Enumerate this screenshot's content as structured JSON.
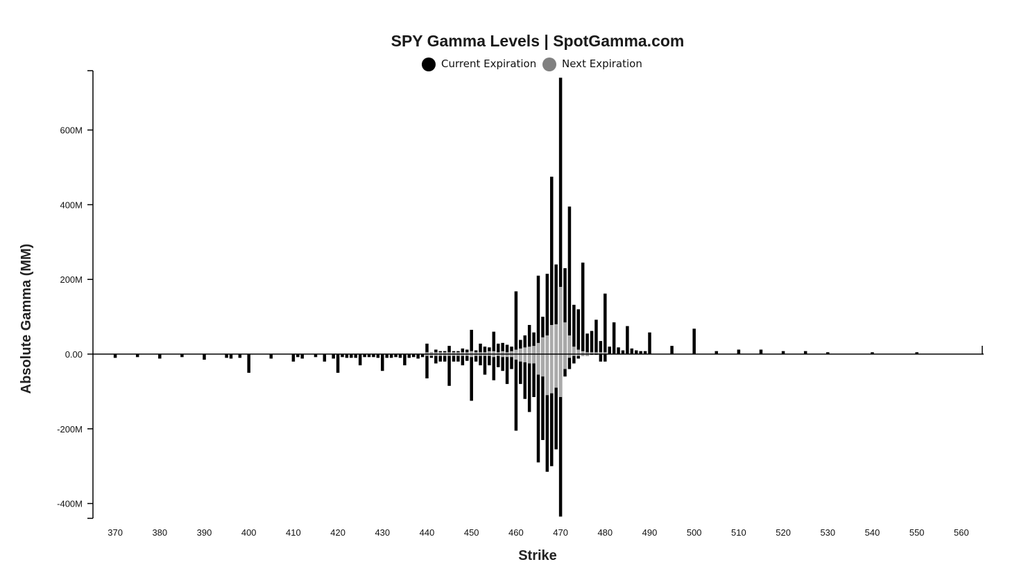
{
  "chart_data": {
    "type": "bar",
    "title": "SPY Gamma Levels | SpotGamma.com",
    "xlabel": "Strike",
    "ylabel": "Absolute Gamma (MM)",
    "xlim": [
      365,
      565
    ],
    "ylim": [
      -440,
      760
    ],
    "x_ticks": [
      370,
      380,
      390,
      400,
      410,
      420,
      430,
      440,
      450,
      460,
      470,
      480,
      490,
      500,
      510,
      520,
      530,
      540,
      550,
      560
    ],
    "x_tick_labels": [
      "370",
      "380",
      "390",
      "400",
      "410",
      "420",
      "430",
      "440",
      "450",
      "460",
      "470",
      "480",
      "490",
      "500",
      "510",
      "520",
      "530",
      "540",
      "550",
      "560"
    ],
    "y_ticks": [
      -400,
      -200,
      0,
      200,
      400,
      600
    ],
    "y_tick_labels": [
      "-400M",
      "-200M",
      "0.00",
      "200M",
      "400M",
      "600M"
    ],
    "grid": false,
    "legend_position": "top-center",
    "colors": {
      "current": "#000000",
      "next": "#aaaaaa",
      "next_legend": "#808080"
    },
    "series": [
      {
        "name": "Current Expiration",
        "x": [
          370,
          375,
          380,
          385,
          390,
          395,
          396,
          398,
          400,
          405,
          410,
          411,
          412,
          415,
          417,
          419,
          420,
          421,
          422,
          423,
          424,
          425,
          426,
          427,
          428,
          429,
          430,
          431,
          432,
          433,
          434,
          435,
          436,
          437,
          438,
          439,
          440,
          441,
          442,
          443,
          444,
          445,
          446,
          447,
          448,
          449,
          450,
          451,
          452,
          453,
          454,
          455,
          456,
          457,
          458,
          459,
          460,
          461,
          462,
          463,
          464,
          465,
          466,
          467,
          468,
          469,
          470,
          471,
          472,
          473,
          474,
          475,
          476,
          477,
          478,
          479,
          480,
          481,
          482,
          483,
          484,
          485,
          486,
          487,
          488,
          489,
          490,
          495,
          500,
          505,
          510,
          515,
          520,
          525,
          530,
          540,
          550
        ],
        "values": [
          -10,
          -8,
          -12,
          -8,
          -15,
          -10,
          -12,
          -10,
          -50,
          -12,
          -20,
          -8,
          -12,
          -8,
          -20,
          -12,
          -50,
          -8,
          -10,
          -10,
          -10,
          -30,
          -8,
          -8,
          -8,
          -10,
          -45,
          -10,
          -10,
          -8,
          -10,
          -30,
          -10,
          -8,
          -12,
          -8,
          -65,
          -10,
          -25,
          -20,
          -20,
          -85,
          -20,
          -20,
          -30,
          -18,
          -125,
          -20,
          -30,
          -55,
          -30,
          -70,
          -35,
          -45,
          -80,
          -40,
          -205,
          -80,
          -120,
          -155,
          -115,
          -290,
          -230,
          -315,
          -300,
          -255,
          -435,
          -60,
          -40,
          -25,
          -12,
          -5,
          -5,
          -2,
          -2,
          -20,
          -20,
          20,
          85,
          18,
          10,
          75,
          15,
          10,
          8,
          8,
          58,
          22,
          68,
          8,
          12,
          12,
          8,
          8,
          5,
          5,
          5
        ]
      },
      {
        "name": "Next Expiration",
        "x": [
          440,
          441,
          442,
          443,
          444,
          445,
          446,
          447,
          448,
          449,
          450,
          451,
          452,
          453,
          454,
          455,
          456,
          457,
          458,
          459,
          460,
          461,
          462,
          463,
          464,
          465,
          466,
          467,
          468,
          469,
          470,
          471,
          472,
          473,
          474,
          475,
          476
        ],
        "values": [
          -5,
          -5,
          -5,
          -5,
          -5,
          -5,
          -5,
          -5,
          -5,
          -5,
          -8,
          -5,
          -5,
          -5,
          -5,
          -8,
          -5,
          -8,
          -8,
          -8,
          -15,
          -20,
          -22,
          -25,
          -25,
          -55,
          -60,
          -110,
          -105,
          -90,
          -115,
          -40,
          -10,
          -5,
          -5,
          -5,
          -5
        ]
      }
    ],
    "positive": {
      "x": [
        440,
        441,
        442,
        443,
        444,
        445,
        446,
        447,
        448,
        449,
        450,
        451,
        452,
        453,
        454,
        455,
        456,
        457,
        458,
        459,
        460,
        461,
        462,
        463,
        464,
        465,
        466,
        467,
        468,
        469,
        470,
        471,
        472,
        473,
        474,
        475,
        476,
        477,
        478,
        479,
        480
      ],
      "current": [
        28,
        5,
        12,
        8,
        8,
        22,
        8,
        8,
        15,
        12,
        65,
        10,
        28,
        20,
        18,
        60,
        28,
        30,
        25,
        20,
        168,
        38,
        50,
        78,
        58,
        210,
        100,
        215,
        475,
        240,
        740,
        230,
        395,
        132,
        120,
        245,
        55,
        62,
        92,
        35,
        162
      ],
      "next": [
        5,
        5,
        5,
        5,
        5,
        5,
        5,
        5,
        5,
        5,
        8,
        5,
        5,
        5,
        8,
        8,
        5,
        8,
        5,
        8,
        12,
        15,
        18,
        20,
        22,
        30,
        45,
        50,
        78,
        80,
        180,
        85,
        50,
        20,
        12,
        8,
        5,
        5,
        5,
        5,
        5
      ]
    }
  },
  "legend": {
    "items": [
      {
        "label": "Current Expiration",
        "color": "#000000"
      },
      {
        "label": "Next Expiration",
        "color": "#808080"
      }
    ]
  }
}
